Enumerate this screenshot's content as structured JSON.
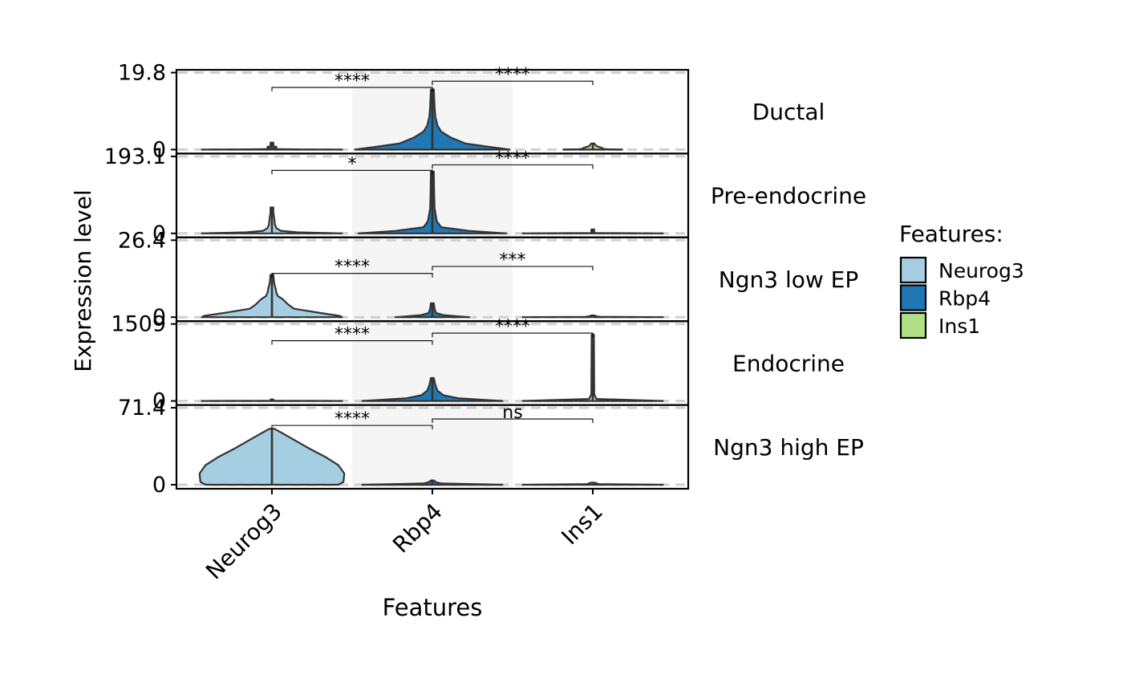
{
  "chart_data": {
    "type": "violin",
    "xlabel": "Features",
    "ylabel": "Expression level",
    "categories": [
      "Neurog3",
      "Rbp4",
      "Ins1"
    ],
    "colors": {
      "Neurog3": "#a6cee3",
      "Rbp4": "#1f78b4",
      "Ins1": "#b2df8a"
    },
    "legend": {
      "title": "Features:",
      "position": "right",
      "items": [
        "Neurog3",
        "Rbp4",
        "Ins1"
      ]
    },
    "highlight_category": "Rbp4",
    "panels": [
      {
        "label": "Ductal",
        "ylim": [
          0,
          19.8
        ],
        "yticks": [
          "19.8",
          "0"
        ],
        "max": {
          "Neurog3": 1.8,
          "Rbp4": 15.5,
          "Ins1": 1.6
        },
        "comparisons": [
          {
            "from": "Neurog3",
            "to": "Rbp4",
            "label": "****",
            "y": 16.0
          },
          {
            "from": "Rbp4",
            "to": "Ins1",
            "label": "****",
            "y": 17.6
          }
        ]
      },
      {
        "label": "Pre-endocrine",
        "ylim": [
          0,
          193.1
        ],
        "yticks": [
          "193.1",
          "0"
        ],
        "max": {
          "Neurog3": 65,
          "Rbp4": 155,
          "Ins1": 10
        },
        "comparisons": [
          {
            "from": "Neurog3",
            "to": "Rbp4",
            "label": "*",
            "y": 158
          },
          {
            "from": "Rbp4",
            "to": "Ins1",
            "label": "****",
            "y": 172
          }
        ]
      },
      {
        "label": "Ngn3 low EP",
        "ylim": [
          0,
          26.4
        ],
        "yticks": [
          "26.4",
          "0"
        ],
        "max": {
          "Neurog3": 14.5,
          "Rbp4": 4.8,
          "Ins1": 0.6
        },
        "comparisons": [
          {
            "from": "Neurog3",
            "to": "Rbp4",
            "label": "****",
            "y": 15.0
          },
          {
            "from": "Rbp4",
            "to": "Ins1",
            "label": "***",
            "y": 17.4
          }
        ]
      },
      {
        "label": "Endocrine",
        "ylim": [
          0,
          1509
        ],
        "yticks": [
          "1509",
          "0"
        ],
        "max": {
          "Neurog3": 30,
          "Rbp4": 450,
          "Ins1": 1300
        },
        "comparisons": [
          {
            "from": "Neurog3",
            "to": "Rbp4",
            "label": "****",
            "y": 1180
          },
          {
            "from": "Rbp4",
            "to": "Ins1",
            "label": "****",
            "y": 1330
          }
        ]
      },
      {
        "label": "Ngn3 high EP",
        "ylim": [
          0,
          71.4
        ],
        "yticks": [
          "71.4",
          "0"
        ],
        "max": {
          "Neurog3": 52,
          "Rbp4": 4,
          "Ins1": 2
        },
        "comparisons": [
          {
            "from": "Neurog3",
            "to": "Rbp4",
            "label": "****",
            "y": 55
          },
          {
            "from": "Rbp4",
            "to": "Ins1",
            "label": "ns",
            "y": 61
          }
        ]
      }
    ]
  }
}
